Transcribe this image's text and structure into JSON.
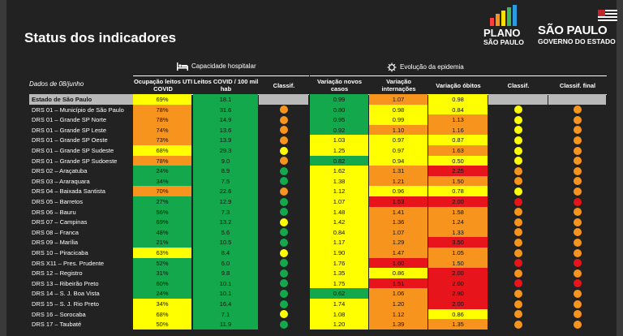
{
  "title": "Status dos indicadores",
  "logos": {
    "plano_line1": "PLANO",
    "plano_line2": "SÃO PAULO",
    "sp_line1": "SÃO PAULO",
    "sp_line2": "GOVERNO DO ESTADO"
  },
  "sections": {
    "hospital": "Capacidade hospitalar",
    "epidemia": "Evolução da epidemia"
  },
  "date_label": "Dados de 08/junho",
  "columns": {
    "ocupacao": "Ocupação leitos UTI COVID",
    "leitos": "Leitos COVID / 100 mil hab",
    "classif1": "Classif.",
    "casos": "Variação novos casos",
    "internacoes": "Variação internações",
    "obitos": "Variação óbitos",
    "classif2": "Classif.",
    "final": "Classif. final"
  },
  "colors": {
    "red": "#e8141b",
    "orange": "#f7941d",
    "yellow": "#ffff00",
    "green": "#13a84b",
    "none": "transparent"
  },
  "rows": [
    {
      "name": "Estado de São Paulo",
      "state": true,
      "ocup": "69%",
      "ocup_c": "yellow",
      "leitos": "18.1",
      "leitos_c": "green",
      "c1": "none",
      "casos": "0.99",
      "casos_c": "green",
      "intern": "1.07",
      "intern_c": "orange",
      "obitos": "0.98",
      "obitos_c": "yellow",
      "c2": "none",
      "final": "none"
    },
    {
      "name": "DRS 01 – Município de São Paulo",
      "ocup": "78%",
      "ocup_c": "orange",
      "leitos": "31.6",
      "leitos_c": "green",
      "c1": "orange",
      "casos": "0.80",
      "casos_c": "green",
      "intern": "0.98",
      "intern_c": "yellow",
      "obitos": "0.84",
      "obitos_c": "yellow",
      "c2": "yellow",
      "final": "orange"
    },
    {
      "name": "DRS 01 – Grande SP Norte",
      "ocup": "78%",
      "ocup_c": "orange",
      "leitos": "14.9",
      "leitos_c": "green",
      "c1": "orange",
      "casos": "0.95",
      "casos_c": "green",
      "intern": "0.99",
      "intern_c": "yellow",
      "obitos": "1.13",
      "obitos_c": "orange",
      "c2": "yellow",
      "final": "orange"
    },
    {
      "name": "DRS 01 – Grande SP Leste",
      "ocup": "74%",
      "ocup_c": "orange",
      "leitos": "13.6",
      "leitos_c": "green",
      "c1": "orange",
      "casos": "0.92",
      "casos_c": "green",
      "intern": "1.10",
      "intern_c": "orange",
      "obitos": "1.16",
      "obitos_c": "orange",
      "c2": "yellow",
      "final": "orange"
    },
    {
      "name": "DRS 01 – Grande SP Oeste",
      "ocup": "73%",
      "ocup_c": "orange",
      "leitos": "13.9",
      "leitos_c": "green",
      "c1": "orange",
      "casos": "1.03",
      "casos_c": "yellow",
      "intern": "0.97",
      "intern_c": "yellow",
      "obitos": "0.87",
      "obitos_c": "yellow",
      "c2": "yellow",
      "final": "orange"
    },
    {
      "name": "DRS 01 – Grande SP Sudeste",
      "ocup": "68%",
      "ocup_c": "yellow",
      "leitos": "29.3",
      "leitos_c": "green",
      "c1": "yellow",
      "casos": "1.25",
      "casos_c": "yellow",
      "intern": "0.97",
      "intern_c": "yellow",
      "obitos": "1.63",
      "obitos_c": "orange",
      "c2": "yellow",
      "final": "orange"
    },
    {
      "name": "DRS 01 – Grande SP Sudoeste",
      "ocup": "78%",
      "ocup_c": "orange",
      "leitos": "9.0",
      "leitos_c": "green",
      "c1": "orange",
      "casos": "0.82",
      "casos_c": "green",
      "intern": "0.94",
      "intern_c": "yellow",
      "obitos": "0.50",
      "obitos_c": "yellow",
      "c2": "yellow",
      "final": "orange"
    },
    {
      "name": "DRS 02 – Araçatuba",
      "ocup": "24%",
      "ocup_c": "green",
      "leitos": "8.9",
      "leitos_c": "green",
      "c1": "green",
      "casos": "1.62",
      "casos_c": "yellow",
      "intern": "1.31",
      "intern_c": "orange",
      "obitos": "2.25",
      "obitos_c": "red",
      "c2": "orange",
      "final": "orange"
    },
    {
      "name": "DRS 03 – Araraquara",
      "ocup": "34%",
      "ocup_c": "green",
      "leitos": "7.5",
      "leitos_c": "green",
      "c1": "green",
      "casos": "1.38",
      "casos_c": "yellow",
      "intern": "1.21",
      "intern_c": "orange",
      "obitos": "1.50",
      "obitos_c": "orange",
      "c2": "orange",
      "final": "orange"
    },
    {
      "name": "DRS 04 – Baixada Santista",
      "ocup": "70%",
      "ocup_c": "orange",
      "leitos": "22.6",
      "leitos_c": "green",
      "c1": "orange",
      "casos": "1.12",
      "casos_c": "yellow",
      "intern": "0.96",
      "intern_c": "yellow",
      "obitos": "0.78",
      "obitos_c": "yellow",
      "c2": "yellow",
      "final": "orange"
    },
    {
      "name": "DRS 05 – Barretos",
      "ocup": "27%",
      "ocup_c": "green",
      "leitos": "12.9",
      "leitos_c": "green",
      "c1": "green",
      "casos": "1.07",
      "casos_c": "yellow",
      "intern": "1.53",
      "intern_c": "red",
      "obitos": "2.00",
      "obitos_c": "red",
      "c2": "red",
      "final": "red"
    },
    {
      "name": "DRS 06 – Bauru",
      "ocup": "56%",
      "ocup_c": "green",
      "leitos": "7.3",
      "leitos_c": "green",
      "c1": "green",
      "casos": "1.48",
      "casos_c": "yellow",
      "intern": "1.41",
      "intern_c": "orange",
      "obitos": "1.58",
      "obitos_c": "orange",
      "c2": "orange",
      "final": "orange"
    },
    {
      "name": "DRS 07 – Campinas",
      "ocup": "69%",
      "ocup_c": "green",
      "leitos": "13.2",
      "leitos_c": "green",
      "c1": "yellow",
      "casos": "1.42",
      "casos_c": "yellow",
      "intern": "1.36",
      "intern_c": "orange",
      "obitos": "1.24",
      "obitos_c": "orange",
      "c2": "orange",
      "final": "orange"
    },
    {
      "name": "DRS 08 – Franca",
      "ocup": "48%",
      "ocup_c": "green",
      "leitos": "5.6",
      "leitos_c": "green",
      "c1": "green",
      "casos": "0.84",
      "casos_c": "yellow",
      "intern": "1.07",
      "intern_c": "orange",
      "obitos": "1.33",
      "obitos_c": "orange",
      "c2": "orange",
      "final": "orange"
    },
    {
      "name": "DRS 09 – Marília",
      "ocup": "21%",
      "ocup_c": "green",
      "leitos": "10.5",
      "leitos_c": "green",
      "c1": "green",
      "casos": "1.17",
      "casos_c": "yellow",
      "intern": "1.29",
      "intern_c": "orange",
      "obitos": "3.50",
      "obitos_c": "red",
      "c2": "orange",
      "final": "orange"
    },
    {
      "name": "DRS 10 – Piracicaba",
      "ocup": "63%",
      "ocup_c": "yellow",
      "leitos": "8.4",
      "leitos_c": "green",
      "c1": "yellow",
      "casos": "1.90",
      "casos_c": "yellow",
      "intern": "1.47",
      "intern_c": "orange",
      "obitos": "1.05",
      "obitos_c": "orange",
      "c2": "orange",
      "final": "orange"
    },
    {
      "name": "DRS X11 – Pres. Prudente",
      "ocup": "52%",
      "ocup_c": "green",
      "leitos": "6.0",
      "leitos_c": "green",
      "c1": "green",
      "casos": "1.76",
      "casos_c": "yellow",
      "intern": "1.60",
      "intern_c": "red",
      "obitos": "1.50",
      "obitos_c": "orange",
      "c2": "red",
      "final": "red"
    },
    {
      "name": "DRS 12 – Registro",
      "ocup": "31%",
      "ocup_c": "green",
      "leitos": "9.8",
      "leitos_c": "green",
      "c1": "green",
      "casos": "1.35",
      "casos_c": "yellow",
      "intern": "0.86",
      "intern_c": "yellow",
      "obitos": "2.00",
      "obitos_c": "red",
      "c2": "orange",
      "final": "orange"
    },
    {
      "name": "DRS 13 – Ribeirão Preto",
      "ocup": "60%",
      "ocup_c": "green",
      "leitos": "10.1",
      "leitos_c": "green",
      "c1": "green",
      "casos": "1.75",
      "casos_c": "yellow",
      "intern": "1.51",
      "intern_c": "red",
      "obitos": "2.00",
      "obitos_c": "red",
      "c2": "red",
      "final": "red"
    },
    {
      "name": "DRS 14 – S. J. Boa Vista",
      "ocup": "24%",
      "ocup_c": "green",
      "leitos": "10.1",
      "leitos_c": "green",
      "c1": "green",
      "casos": "0.62",
      "casos_c": "green",
      "intern": "1.06",
      "intern_c": "orange",
      "obitos": "2.90",
      "obitos_c": "red",
      "c2": "orange",
      "final": "orange"
    },
    {
      "name": "DRS 15 – S. J. Rio Preto",
      "ocup": "34%",
      "ocup_c": "yellow",
      "leitos": "16.4",
      "leitos_c": "green",
      "c1": "green",
      "casos": "1.74",
      "casos_c": "yellow",
      "intern": "1.20",
      "intern_c": "orange",
      "obitos": "2.00",
      "obitos_c": "red",
      "c2": "orange",
      "final": "orange"
    },
    {
      "name": "DRS 16 – Sorocaba",
      "ocup": "68%",
      "ocup_c": "yellow",
      "leitos": "7.1",
      "leitos_c": "green",
      "c1": "yellow",
      "casos": "1.08",
      "casos_c": "yellow",
      "intern": "1.12",
      "intern_c": "orange",
      "obitos": "0.86",
      "obitos_c": "yellow",
      "c2": "orange",
      "final": "orange"
    },
    {
      "name": "DRS 17 – Taubaté",
      "ocup": "50%",
      "ocup_c": "yellow",
      "leitos": "11.9",
      "leitos_c": "green",
      "c1": "green",
      "casos": "1.20",
      "casos_c": "yellow",
      "intern": "1.39",
      "intern_c": "orange",
      "obitos": "1.35",
      "obitos_c": "orange",
      "c2": "orange",
      "final": "orange"
    }
  ]
}
